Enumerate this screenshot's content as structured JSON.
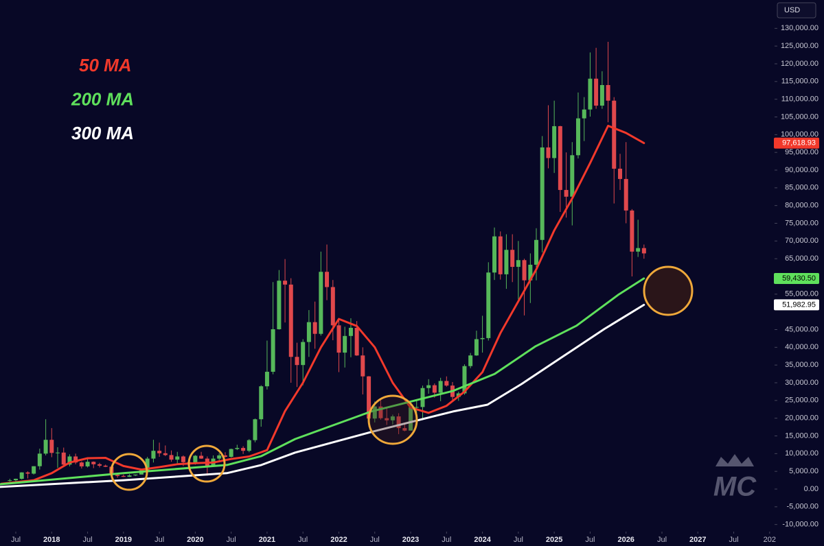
{
  "chart_data": {
    "type": "candlestick",
    "currency": "USD",
    "watermark": "MC",
    "grid": false,
    "up_color": "#56b85a",
    "down_color": "#e0484c",
    "xlim": [
      2017.28,
      2028.04
    ],
    "ylim": [
      -12000,
      138000
    ],
    "xticks": [
      {
        "value": 2017.5,
        "label": "Jul"
      },
      2018,
      {
        "value": 2018.5,
        "label": "Jul"
      },
      2019,
      {
        "value": 2019.5,
        "label": "Jul"
      },
      2020,
      {
        "value": 2020.5,
        "label": "Jul"
      },
      2021,
      {
        "value": 2021.5,
        "label": "Jul"
      },
      2022,
      {
        "value": 2022.5,
        "label": "Jul"
      },
      2023,
      {
        "value": 2023.5,
        "label": "Jul"
      },
      2024,
      {
        "value": 2024.5,
        "label": "Jul"
      },
      2025,
      {
        "value": 2025.5,
        "label": "Jul"
      },
      2026,
      {
        "value": 2026.5,
        "label": "Jul"
      },
      2027,
      {
        "value": 2027.5,
        "label": "Jul"
      },
      {
        "value": 2028,
        "label": "202"
      }
    ],
    "yticks": [
      {
        "value": 130000,
        "label": "130,000.00"
      },
      {
        "value": 125000,
        "label": "125,000.00"
      },
      {
        "value": 120000,
        "label": "120,000.00"
      },
      {
        "value": 115000,
        "label": "115,000.00"
      },
      {
        "value": 110000,
        "label": "110,000.00"
      },
      {
        "value": 105000,
        "label": "105,000.00"
      },
      {
        "value": 100000,
        "label": "100,000.00"
      },
      {
        "value": 95000,
        "label": "95,000.00"
      },
      {
        "value": 90000,
        "label": "90,000.00"
      },
      {
        "value": 85000,
        "label": "85,000.00"
      },
      {
        "value": 80000,
        "label": "80,000.00"
      },
      {
        "value": 75000,
        "label": "75,000.00"
      },
      {
        "value": 70000,
        "label": "70,000.00"
      },
      {
        "value": 65000,
        "label": "65,000.00"
      },
      {
        "value": 55000,
        "label": "55,000.00"
      },
      {
        "value": 45000,
        "label": "45,000.00"
      },
      {
        "value": 40000,
        "label": "40,000.00"
      },
      {
        "value": 35000,
        "label": "35,000.00"
      },
      {
        "value": 30000,
        "label": "30,000.00"
      },
      {
        "value": 25000,
        "label": "25,000.00"
      },
      {
        "value": 20000,
        "label": "20,000.00"
      },
      {
        "value": 15000,
        "label": "15,000.00"
      },
      {
        "value": 10000,
        "label": "10,000.00"
      },
      {
        "value": 5000,
        "label": "5,000.00"
      },
      {
        "value": 0,
        "label": "0.00"
      },
      {
        "value": -5000,
        "label": "-5,000.00"
      },
      {
        "value": -10000,
        "label": "-10,000.00"
      }
    ],
    "x": [
      2017.417,
      2017.5,
      2017.583,
      2017.667,
      2017.75,
      2017.833,
      2017.917,
      2018.0,
      2018.083,
      2018.167,
      2018.25,
      2018.333,
      2018.417,
      2018.5,
      2018.583,
      2018.667,
      2018.75,
      2018.833,
      2018.917,
      2019.0,
      2019.083,
      2019.167,
      2019.25,
      2019.333,
      2019.417,
      2019.5,
      2019.583,
      2019.667,
      2019.75,
      2019.833,
      2019.917,
      2020.0,
      2020.083,
      2020.167,
      2020.25,
      2020.333,
      2020.417,
      2020.5,
      2020.583,
      2020.667,
      2020.75,
      2020.833,
      2020.917,
      2021.0,
      2021.083,
      2021.167,
      2021.25,
      2021.333,
      2021.417,
      2021.5,
      2021.583,
      2021.667,
      2021.75,
      2021.833,
      2021.917,
      2022.0,
      2022.083,
      2022.167,
      2022.25,
      2022.333,
      2022.417,
      2022.5,
      2022.583,
      2022.667,
      2022.75,
      2022.833,
      2022.917,
      2023.0,
      2023.083,
      2023.167,
      2023.25,
      2023.333,
      2023.417,
      2023.5,
      2023.583,
      2023.667,
      2023.75,
      2023.833,
      2023.917,
      2024.0,
      2024.083,
      2024.167,
      2024.25,
      2024.333,
      2024.417,
      2024.5,
      2024.583,
      2024.667,
      2024.75,
      2024.833,
      2024.917,
      2025.0,
      2025.083,
      2025.167,
      2025.25,
      2025.333,
      2025.417,
      2025.5,
      2025.583,
      2025.667,
      2025.75,
      2025.833,
      2025.917,
      2026.0,
      2026.083,
      2026.167,
      2026.25
    ],
    "open": [
      2400,
      2500,
      2900,
      4700,
      4350,
      6450,
      10000,
      13900,
      10200,
      10300,
      6900,
      9200,
      7500,
      6400,
      7700,
      7000,
      6600,
      6300,
      4000,
      3700,
      3450,
      3850,
      4100,
      5300,
      8600,
      10800,
      10100,
      9600,
      8300,
      9200,
      7600,
      7200,
      9400,
      8600,
      6400,
      8600,
      9500,
      9100,
      11300,
      11600,
      10800,
      13800,
      19700,
      29000,
      33100,
      45100,
      58800,
      57700,
      37300,
      35000,
      41500,
      47100,
      43800,
      61300,
      57000,
      46200,
      38500,
      43200,
      45500,
      37700,
      31800,
      19900,
      23300,
      20000,
      19400,
      20500,
      17200,
      16500,
      23100,
      23150,
      28500,
      29300,
      27200,
      30500,
      29200,
      26000,
      27000,
      34700,
      37700,
      42300,
      42600,
      61100,
      71300,
      60600,
      67500,
      62700,
      64600,
      58900,
      63300,
      70300,
      96400,
      93400,
      102400,
      84400,
      82500,
      94200,
      104600,
      107100,
      115800,
      108200,
      114000,
      109600,
      90400,
      87500,
      78600,
      67000,
      68000
    ],
    "high": [
      2900,
      2950,
      4750,
      5000,
      6450,
      11400,
      19700,
      17200,
      11800,
      11700,
      9800,
      10000,
      7800,
      8500,
      7800,
      7400,
      6900,
      6600,
      4300,
      4100,
      4200,
      4100,
      5600,
      9100,
      13900,
      13100,
      12300,
      10900,
      10500,
      9500,
      7800,
      9600,
      10500,
      9200,
      9500,
      10100,
      10400,
      11400,
      12500,
      12100,
      14100,
      19900,
      29300,
      41900,
      58400,
      61800,
      64900,
      59500,
      41300,
      42300,
      50500,
      52900,
      67000,
      69000,
      59000,
      47900,
      45800,
      48200,
      47400,
      40000,
      31900,
      24700,
      25200,
      22800,
      21000,
      21400,
      18400,
      23900,
      25300,
      29200,
      31000,
      29800,
      31400,
      31800,
      30200,
      27500,
      35200,
      38400,
      44700,
      48900,
      64000,
      73800,
      72700,
      71900,
      71900,
      70000,
      65000,
      66500,
      73600,
      99600,
      108300,
      109600,
      102500,
      95000,
      97900,
      111900,
      110600,
      123200,
      124500,
      117900,
      126200,
      110600,
      94600,
      97900,
      79000,
      76000,
      69000
    ],
    "low": [
      2100,
      1850,
      2700,
      3000,
      4100,
      5500,
      9500,
      9000,
      6000,
      6600,
      6400,
      7000,
      5800,
      6100,
      5900,
      6100,
      6200,
      3600,
      3200,
      3400,
      3400,
      3700,
      4100,
      5300,
      7500,
      9100,
      9300,
      7700,
      7300,
      6500,
      6400,
      6900,
      8500,
      3800,
      6200,
      8100,
      8900,
      8900,
      11000,
      9900,
      10400,
      13200,
      17600,
      28100,
      32400,
      45000,
      47000,
      30000,
      28800,
      29300,
      37300,
      39600,
      43300,
      53300,
      42000,
      33000,
      34300,
      37200,
      37600,
      26700,
      17600,
      18800,
      19600,
      18100,
      18200,
      15500,
      16300,
      16500,
      21400,
      19500,
      26900,
      25800,
      24800,
      28900,
      25200,
      24900,
      26600,
      34100,
      37600,
      38500,
      41900,
      59000,
      59100,
      56500,
      58400,
      53500,
      49000,
      52500,
      58900,
      66800,
      90500,
      89200,
      78200,
      76600,
      74400,
      93300,
      98200,
      105100,
      107300,
      107300,
      103500,
      80600,
      84400,
      75000,
      60000,
      65500,
      65000
    ],
    "close": [
      2500,
      2900,
      4700,
      4350,
      6450,
      10000,
      13900,
      10200,
      10300,
      6900,
      9200,
      7500,
      6400,
      7700,
      7000,
      6600,
      6300,
      4000,
      3700,
      3450,
      3850,
      4100,
      5300,
      8600,
      10800,
      10100,
      9600,
      8300,
      9200,
      7600,
      7200,
      9400,
      8600,
      6400,
      8600,
      9500,
      9100,
      11300,
      11600,
      10800,
      13800,
      19700,
      29000,
      33100,
      45100,
      58800,
      57700,
      37300,
      35000,
      41500,
      47100,
      43800,
      61300,
      57000,
      46200,
      38500,
      43200,
      45500,
      37700,
      31800,
      19900,
      23300,
      20000,
      19400,
      20500,
      17200,
      16500,
      23100,
      23150,
      28500,
      29300,
      27200,
      30500,
      29200,
      26000,
      27000,
      34700,
      37700,
      42300,
      42600,
      61100,
      71300,
      60600,
      67500,
      62700,
      64600,
      58900,
      63300,
      70300,
      96400,
      93400,
      102400,
      84400,
      82500,
      94200,
      104600,
      107100,
      115800,
      108200,
      114000,
      109600,
      90400,
      87500,
      78600,
      67000,
      68000,
      66500
    ],
    "series": [
      {
        "name": "50 MA",
        "color": "#f2392b",
        "x": [
          2017.3,
          2017.75,
          2018.0,
          2018.25,
          2018.5,
          2018.75,
          2019.0,
          2019.25,
          2019.5,
          2019.75,
          2020.0,
          2020.25,
          2020.5,
          2020.75,
          2021.0,
          2021.25,
          2021.5,
          2021.75,
          2022.0,
          2022.25,
          2022.5,
          2022.75,
          2023.0,
          2023.25,
          2023.5,
          2023.75,
          2024.0,
          2024.25,
          2024.5,
          2024.75,
          2025.0,
          2025.25,
          2025.5,
          2025.75,
          2026.0,
          2026.25
        ],
        "values": [
          1500,
          2500,
          4500,
          7500,
          8700,
          8800,
          6500,
          5500,
          6200,
          7000,
          7300,
          7500,
          8500,
          9200,
          11000,
          22000,
          30000,
          40000,
          48000,
          46000,
          40000,
          30000,
          23000,
          21500,
          23500,
          27500,
          33000,
          44000,
          53000,
          62000,
          73000,
          82000,
          92000,
          102500,
          100500,
          97618.93
        ],
        "last": {
          "value": 97618.93,
          "label": "97,618.93"
        }
      },
      {
        "name": "200 MA",
        "color": "#5fe05c",
        "x": [
          2017.28,
          2019.0,
          2020.44,
          2020.92,
          2021.39,
          2022.45,
          2023.02,
          2023.59,
          2024.17,
          2024.74,
          2025.31,
          2025.89,
          2026.25
        ],
        "values": [
          1350,
          4500,
          6800,
          9300,
          14100,
          21900,
          24800,
          27700,
          32500,
          40300,
          46100,
          54800,
          59430.5
        ],
        "last": {
          "value": 59430.5,
          "label": "59,430.50"
        }
      },
      {
        "name": "300 MA",
        "color": "#ffffff",
        "x": [
          2017.28,
          2019.0,
          2020.44,
          2020.92,
          2021.39,
          2022.45,
          2023.02,
          2023.59,
          2024.07,
          2024.55,
          2025.12,
          2025.7,
          2026.25
        ],
        "values": [
          600,
          2500,
          4500,
          6800,
          10300,
          16100,
          19000,
          21900,
          23800,
          29700,
          37400,
          45200,
          51982.95
        ],
        "last": {
          "value": 51982.95,
          "label": "51,982.95"
        }
      }
    ]
  }
}
